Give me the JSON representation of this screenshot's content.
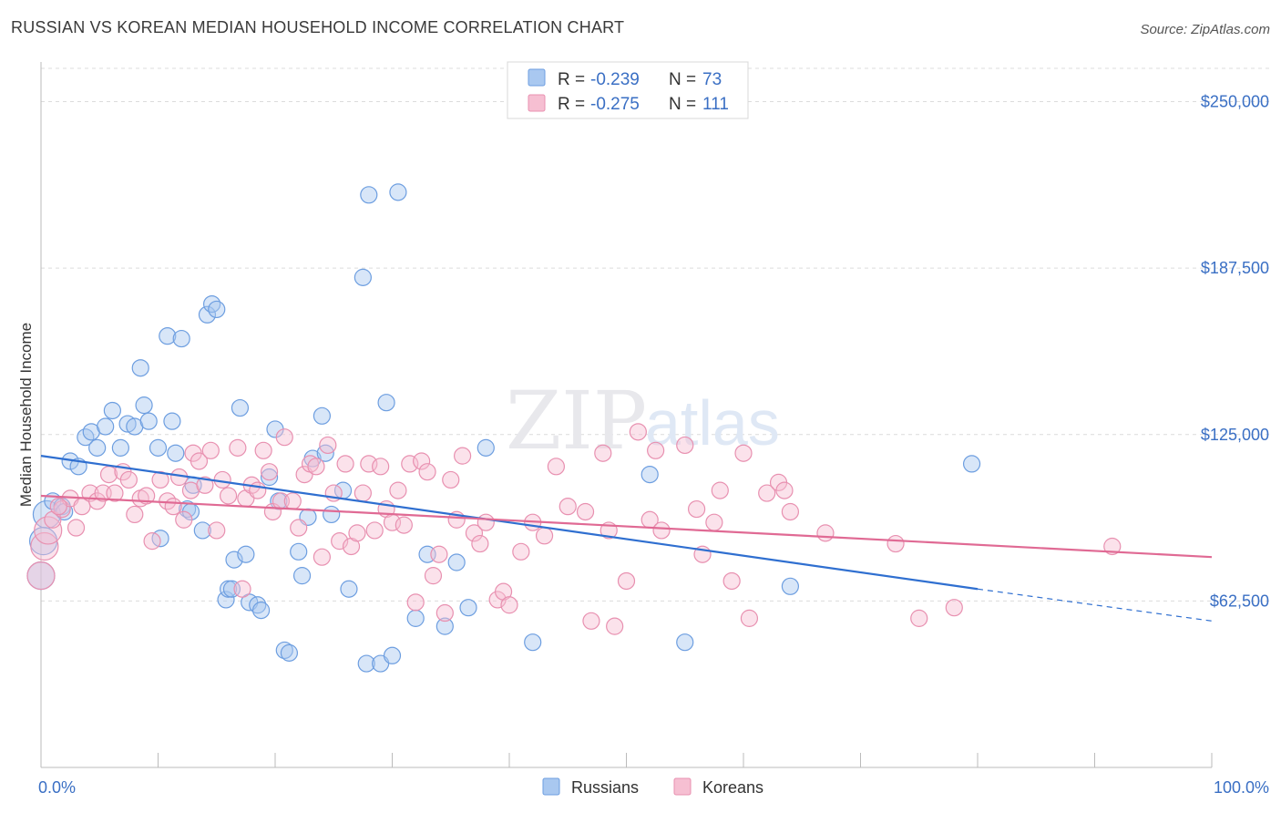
{
  "header": {
    "title": "RUSSIAN VS KOREAN MEDIAN HOUSEHOLD INCOME CORRELATION CHART",
    "source": "Source: ZipAtlas.com"
  },
  "watermark": {
    "zip": "ZIP",
    "atlas": "atlas"
  },
  "colors": {
    "russians_fill": "#a9c8f0",
    "russians_stroke": "#6d9ee0",
    "russians_line": "#2f6fd0",
    "koreans_fill": "#f6bfd2",
    "koreans_stroke": "#e890b0",
    "koreans_line": "#e06a94",
    "axis_label": "#3a6fc4",
    "grid": "#dcdcdc"
  },
  "legend": {
    "r_label": "R =",
    "n_label": "N =",
    "rows": [
      {
        "r": "-0.239",
        "n": "73"
      },
      {
        "r": "-0.275",
        "n": "111"
      }
    ]
  },
  "chart_data": {
    "type": "scatter",
    "title": "RUSSIAN VS KOREAN MEDIAN HOUSEHOLD INCOME CORRELATION CHART",
    "xlabel": "",
    "ylabel": "Median Household Income",
    "xlim": [
      0,
      100
    ],
    "ylim": [
      0,
      262500
    ],
    "y_ticks": [
      62500,
      125000,
      187500,
      250000
    ],
    "y_tick_labels": [
      "$62,500",
      "$125,000",
      "$187,500",
      "$250,000"
    ],
    "x_tick_labels": [
      "0.0%",
      "100.0%"
    ],
    "grid": true,
    "legend_position": "top-center",
    "series": [
      {
        "name": "Russians",
        "r": -0.239,
        "n": 73,
        "trend": {
          "x0": 0,
          "y0": 117000,
          "x1": 80,
          "y1": 67000,
          "dash_to_x": 100,
          "dash_to_y": 55000
        },
        "points": [
          [
            0,
            72000,
            1
          ],
          [
            0.5,
            95000,
            1
          ],
          [
            1.0,
            100000,
            0
          ],
          [
            1.8,
            98000,
            0
          ],
          [
            2.5,
            115000,
            0
          ],
          [
            3.2,
            113000,
            0
          ],
          [
            3.8,
            124000,
            0
          ],
          [
            4.3,
            126000,
            0
          ],
          [
            4.8,
            120000,
            0
          ],
          [
            5.5,
            128000,
            0
          ],
          [
            6.1,
            134000,
            0
          ],
          [
            6.8,
            120000,
            0
          ],
          [
            7.4,
            129000,
            0
          ],
          [
            8.0,
            128000,
            0
          ],
          [
            8.5,
            150000,
            0
          ],
          [
            8.8,
            136000,
            0
          ],
          [
            9.2,
            130000,
            0
          ],
          [
            10.0,
            120000,
            0
          ],
          [
            10.2,
            86000,
            0
          ],
          [
            10.8,
            162000,
            0
          ],
          [
            11.2,
            130000,
            0
          ],
          [
            11.5,
            118000,
            0
          ],
          [
            12.0,
            161000,
            0
          ],
          [
            12.5,
            97000,
            0
          ],
          [
            12.8,
            96000,
            0
          ],
          [
            13.0,
            106000,
            0
          ],
          [
            13.8,
            89000,
            0
          ],
          [
            14.2,
            170000,
            0
          ],
          [
            14.6,
            174000,
            0
          ],
          [
            15.0,
            172000,
            0
          ],
          [
            15.8,
            63000,
            0
          ],
          [
            16.0,
            67000,
            0
          ],
          [
            16.3,
            67000,
            0
          ],
          [
            16.5,
            78000,
            0
          ],
          [
            17.0,
            135000,
            0
          ],
          [
            17.5,
            80000,
            0
          ],
          [
            17.8,
            62000,
            0
          ],
          [
            18.5,
            61000,
            0
          ],
          [
            18.8,
            59000,
            0
          ],
          [
            19.5,
            109000,
            0
          ],
          [
            20.0,
            127000,
            0
          ],
          [
            20.3,
            100000,
            0
          ],
          [
            20.8,
            44000,
            0
          ],
          [
            21.2,
            43000,
            0
          ],
          [
            22.0,
            81000,
            0
          ],
          [
            22.3,
            72000,
            0
          ],
          [
            22.8,
            94000,
            0
          ],
          [
            23.2,
            116000,
            0
          ],
          [
            24.0,
            132000,
            0
          ],
          [
            24.3,
            118000,
            0
          ],
          [
            24.8,
            95000,
            0
          ],
          [
            25.8,
            104000,
            0
          ],
          [
            26.3,
            67000,
            0
          ],
          [
            27.5,
            184000,
            0
          ],
          [
            27.8,
            39000,
            0
          ],
          [
            28.0,
            215000,
            0
          ],
          [
            29.0,
            39000,
            0
          ],
          [
            29.5,
            137000,
            0
          ],
          [
            30.0,
            42000,
            0
          ],
          [
            30.5,
            216000,
            0
          ],
          [
            32.0,
            56000,
            0
          ],
          [
            33.0,
            80000,
            0
          ],
          [
            34.5,
            53000,
            0
          ],
          [
            35.5,
            77000,
            0
          ],
          [
            36.5,
            60000,
            0
          ],
          [
            38.0,
            120000,
            0
          ],
          [
            42.0,
            47000,
            0
          ],
          [
            52.0,
            110000,
            0
          ],
          [
            55.0,
            47000,
            0
          ],
          [
            64.0,
            68000,
            0
          ],
          [
            79.5,
            114000,
            0
          ],
          [
            0.2,
            85000,
            1
          ],
          [
            2.0,
            96000,
            0
          ]
        ]
      },
      {
        "name": "Koreans",
        "r": -0.275,
        "n": 111,
        "trend": {
          "x0": 0,
          "y0": 102000,
          "x1": 100,
          "y1": 79000
        },
        "points": [
          [
            0,
            72000,
            1
          ],
          [
            0.3,
            83000,
            1
          ],
          [
            0.6,
            89000,
            1
          ],
          [
            1.0,
            93000,
            0
          ],
          [
            1.8,
            97000,
            0
          ],
          [
            2.5,
            101000,
            0
          ],
          [
            3.0,
            90000,
            0
          ],
          [
            3.5,
            98000,
            0
          ],
          [
            4.2,
            103000,
            0
          ],
          [
            4.8,
            100000,
            0
          ],
          [
            5.3,
            103000,
            0
          ],
          [
            5.8,
            110000,
            0
          ],
          [
            6.3,
            103000,
            0
          ],
          [
            7.0,
            111000,
            0
          ],
          [
            7.5,
            108000,
            0
          ],
          [
            8.0,
            95000,
            0
          ],
          [
            8.5,
            101000,
            0
          ],
          [
            9.0,
            102000,
            0
          ],
          [
            9.5,
            85000,
            0
          ],
          [
            10.2,
            108000,
            0
          ],
          [
            10.8,
            100000,
            0
          ],
          [
            11.3,
            98000,
            0
          ],
          [
            11.8,
            109000,
            0
          ],
          [
            12.2,
            93000,
            0
          ],
          [
            12.8,
            104000,
            0
          ],
          [
            13.0,
            118000,
            0
          ],
          [
            13.5,
            115000,
            0
          ],
          [
            14.0,
            106000,
            0
          ],
          [
            14.5,
            119000,
            0
          ],
          [
            15.0,
            89000,
            0
          ],
          [
            15.5,
            108000,
            0
          ],
          [
            16.0,
            102000,
            0
          ],
          [
            16.8,
            120000,
            0
          ],
          [
            17.2,
            67000,
            0
          ],
          [
            17.5,
            101000,
            0
          ],
          [
            18.0,
            106000,
            0
          ],
          [
            18.5,
            104000,
            0
          ],
          [
            19.0,
            119000,
            0
          ],
          [
            19.5,
            111000,
            0
          ],
          [
            19.8,
            96000,
            0
          ],
          [
            20.5,
            100000,
            0
          ],
          [
            20.8,
            124000,
            0
          ],
          [
            21.5,
            100000,
            0
          ],
          [
            22.0,
            90000,
            0
          ],
          [
            22.5,
            110000,
            0
          ],
          [
            23.0,
            114000,
            0
          ],
          [
            23.5,
            113000,
            0
          ],
          [
            24.0,
            79000,
            0
          ],
          [
            24.5,
            121000,
            0
          ],
          [
            25.0,
            103000,
            0
          ],
          [
            25.5,
            85000,
            0
          ],
          [
            26.0,
            114000,
            0
          ],
          [
            26.5,
            83000,
            0
          ],
          [
            27.0,
            88000,
            0
          ],
          [
            27.5,
            103000,
            0
          ],
          [
            28.0,
            114000,
            0
          ],
          [
            28.5,
            89000,
            0
          ],
          [
            29.0,
            113000,
            0
          ],
          [
            29.5,
            97000,
            0
          ],
          [
            30.0,
            92000,
            0
          ],
          [
            30.5,
            104000,
            0
          ],
          [
            31.0,
            91000,
            0
          ],
          [
            31.5,
            114000,
            0
          ],
          [
            32.0,
            62000,
            0
          ],
          [
            32.5,
            115000,
            0
          ],
          [
            33.0,
            111000,
            0
          ],
          [
            33.5,
            72000,
            0
          ],
          [
            34.0,
            80000,
            0
          ],
          [
            34.5,
            58000,
            0
          ],
          [
            35.0,
            108000,
            0
          ],
          [
            35.5,
            93000,
            0
          ],
          [
            36.0,
            117000,
            0
          ],
          [
            37.0,
            88000,
            0
          ],
          [
            37.5,
            84000,
            0
          ],
          [
            38.0,
            92000,
            0
          ],
          [
            39.0,
            63000,
            0
          ],
          [
            39.5,
            66000,
            0
          ],
          [
            40.0,
            61000,
            0
          ],
          [
            41.0,
            81000,
            0
          ],
          [
            42.0,
            92000,
            0
          ],
          [
            43.0,
            87000,
            0
          ],
          [
            44.0,
            113000,
            0
          ],
          [
            45.0,
            98000,
            0
          ],
          [
            46.5,
            96000,
            0
          ],
          [
            47.0,
            55000,
            0
          ],
          [
            48.0,
            118000,
            0
          ],
          [
            48.5,
            89000,
            0
          ],
          [
            49.0,
            53000,
            0
          ],
          [
            50.0,
            70000,
            0
          ],
          [
            51.0,
            126000,
            0
          ],
          [
            52.0,
            93000,
            0
          ],
          [
            52.5,
            119000,
            0
          ],
          [
            53.0,
            89000,
            0
          ],
          [
            55.0,
            121000,
            0
          ],
          [
            56.0,
            97000,
            0
          ],
          [
            56.5,
            80000,
            0
          ],
          [
            57.5,
            92000,
            0
          ],
          [
            58.0,
            104000,
            0
          ],
          [
            59.0,
            70000,
            0
          ],
          [
            60.0,
            118000,
            0
          ],
          [
            60.5,
            56000,
            0
          ],
          [
            62.0,
            103000,
            0
          ],
          [
            63.0,
            107000,
            0
          ],
          [
            63.5,
            104000,
            0
          ],
          [
            64.0,
            96000,
            0
          ],
          [
            67.0,
            88000,
            0
          ],
          [
            73.0,
            84000,
            0
          ],
          [
            75.0,
            56000,
            0
          ],
          [
            78.0,
            60000,
            0
          ],
          [
            91.5,
            83000,
            0
          ],
          [
            1.5,
            98000,
            0
          ]
        ]
      }
    ]
  },
  "bottom_legend": {
    "items": [
      "Russians",
      "Koreans"
    ]
  }
}
